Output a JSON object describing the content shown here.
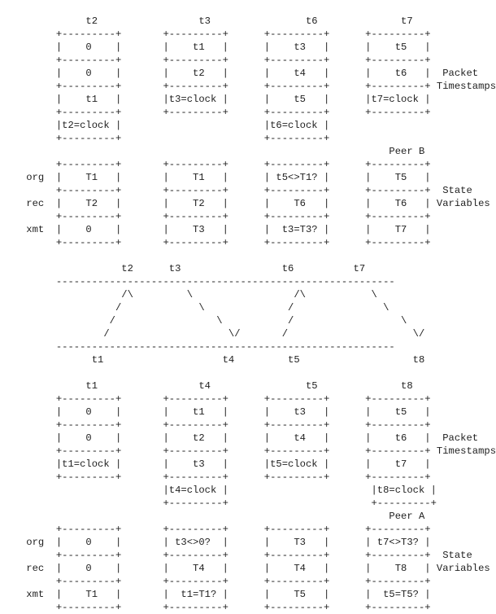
{
  "diagram": {
    "lines": [
      "",
      "              t2                 t3                t6              t7",
      "         +---------+       +---------+      +---------+      +---------+",
      "         |    0    |       |    t1   |      |    t3   |      |    t5   |",
      "         +---------+       +---------+      +---------+      +---------+",
      "         |    0    |       |    t2   |      |    t4   |      |    t6   |  Packet",
      "         +---------+       +---------+      +---------+      +---------+ Timestamps",
      "         |    t1   |       |t3=clock |      |    t5   |      |t7=clock |",
      "         +---------+       +---------+      +---------+      +---------+",
      "         |t2=clock |                        |t6=clock |",
      "         +---------+                        +---------+",
      "                                                                 Peer B",
      "         +---------+       +---------+      +---------+      +---------+",
      "    org  |    T1   |       |    T1   |      | t5<>T1? |      |    T5   |",
      "         +---------+       +---------+      +---------+      +---------+  State",
      "    rec  |    T2   |       |    T2   |      |    T6   |      |    T6   | Variables",
      "         +---------+       +---------+      +---------+      +---------+",
      "    xmt  |    0    |       |    T3   |      |  t3=T3? |      |    T7   |",
      "         +---------+       +---------+      +---------+      +---------+",
      "",
      "                    t2      t3                 t6          t7",
      "         ---------------------------------------------------------",
      "                    /\\         \\                 /\\           \\",
      "                   /             \\              /               \\",
      "                  /                 \\           /                  \\",
      "                 /                    \\/       /                     \\/",
      "         ---------------------------------------------------------",
      "               t1                    t4         t5                   t8",
      "",
      "              t1                 t4                t5              t8",
      "         +---------+       +---------+      +---------+      +---------+",
      "         |    0    |       |    t1   |      |    t3   |      |    t5   |",
      "         +---------+       +---------+      +---------+      +---------+",
      "         |    0    |       |    t2   |      |    t4   |      |    t6   |  Packet",
      "         +---------+       +---------+      +---------+      +---------+ Timestamps",
      "         |t1=clock |       |    t3   |      |t5=clock |      |    t7   |",
      "         +---------+       +---------+      +---------+      +---------+",
      "                           |t4=clock |                        |t8=clock |",
      "                           +---------+                        +---------+",
      "                                                                 Peer A",
      "         +---------+       +---------+      +---------+      +---------+",
      "    org  |    0    |       | t3<>0?  |      |    T3   |      | t7<>T3? |",
      "         +---------+       +---------+      +---------+      +---------+  State",
      "    rec  |    0    |       |    T4   |      |    T4   |      |    T8   | Variables",
      "         +---------+       +---------+      +---------+      +---------+",
      "    xmt  |    T1   |       |  t1=T1? |      |    T5   |      |  t5=T5? |",
      "         +---------+       +---------+      +---------+      +---------+"
    ]
  }
}
